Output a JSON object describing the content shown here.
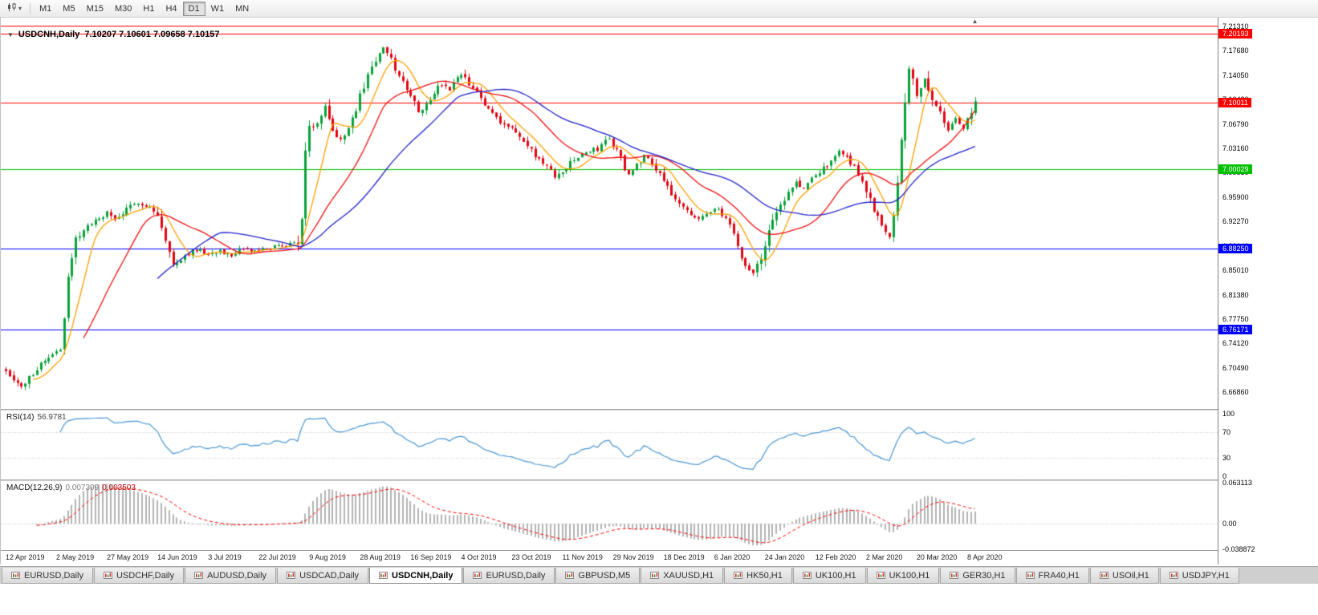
{
  "icons": {
    "collapse": "▼",
    "shift_marker": "▲",
    "selector_caret": "▾"
  },
  "toolbar": {
    "timeframes": [
      "M1",
      "M5",
      "M15",
      "M30",
      "H1",
      "H4",
      "D1",
      "W1",
      "MN"
    ],
    "active_timeframe": "D1"
  },
  "chart": {
    "symbol_title": "USDCNH,Daily",
    "ohlc_text": "7.10207 7.10601 7.09658 7.10157",
    "price_ticks": [
      "7.21310",
      "7.17680",
      "7.14050",
      "7.10420",
      "7.06790",
      "7.03160",
      "6.99530",
      "6.95900",
      "6.92270",
      "6.88640",
      "6.85010",
      "6.81380",
      "6.77750",
      "6.74120",
      "6.70490",
      "6.66860"
    ],
    "hlines": [
      {
        "value": 7.20193,
        "label": "7.20193",
        "color": "#ff0000"
      },
      {
        "value": 7.10011,
        "label": "7.10011",
        "color": "#ff0000"
      },
      {
        "value": 7.00029,
        "label": "7.00029",
        "color": "#00c000"
      },
      {
        "value": 6.8825,
        "label": "6.88250",
        "color": "#0000ff"
      },
      {
        "value": 6.76171,
        "label": "6.76171",
        "color": "#0000ff"
      }
    ],
    "colors": {
      "up": "#0aa23a",
      "down": "#e30613",
      "ma_fast": "#ffa000",
      "ma_mid": "#ee1111",
      "ma_slow": "#2222cc",
      "rsi": "#4a96d2",
      "macd_hist": "#b4b4b4",
      "macd_signal": "#ff0000",
      "levels": "#c0c0c0",
      "frame_top": "#ff0000"
    }
  },
  "chart_data": {
    "type": "candlestick+indicators",
    "symbol": "USDCNH",
    "timeframe": "Daily",
    "last_close": 7.10157,
    "price_range_visible": [
      6.6686,
      7.2131
    ],
    "candle_count": 250,
    "candles_per_label": 13,
    "x_labels": [
      "12 Apr 2019",
      "2 May 2019",
      "27 May 2019",
      "14 Jun 2019",
      "3 Jul 2019",
      "22 Jul 2019",
      "9 Aug 2019",
      "28 Aug 2019",
      "16 Sep 2019",
      "4 Oct 2019",
      "23 Oct 2019",
      "11 Nov 2019",
      "29 Nov 2019",
      "18 Dec 2019",
      "6 Jan 2020",
      "24 Jan 2020",
      "12 Feb 2020",
      "2 Mar 2020",
      "20 Mar 2020",
      "8 Apr 2020"
    ],
    "close_anchors": [
      [
        0,
        6.702
      ],
      [
        2,
        6.69
      ],
      [
        4,
        6.676
      ],
      [
        6,
        6.69
      ],
      [
        9,
        6.712
      ],
      [
        12,
        6.726
      ],
      [
        14,
        6.737
      ],
      [
        15,
        6.775
      ],
      [
        16,
        6.836
      ],
      [
        18,
        6.895
      ],
      [
        20,
        6.912
      ],
      [
        23,
        6.923
      ],
      [
        26,
        6.936
      ],
      [
        28,
        6.925
      ],
      [
        31,
        6.94
      ],
      [
        34,
        6.952
      ],
      [
        37,
        6.944
      ],
      [
        39,
        6.932
      ],
      [
        41,
        6.892
      ],
      [
        43,
        6.858
      ],
      [
        45,
        6.868
      ],
      [
        47,
        6.876
      ],
      [
        50,
        6.883
      ],
      [
        52,
        6.873
      ],
      [
        55,
        6.88
      ],
      [
        58,
        6.869
      ],
      [
        61,
        6.882
      ],
      [
        64,
        6.878
      ],
      [
        67,
        6.883
      ],
      [
        70,
        6.886
      ],
      [
        73,
        6.889
      ],
      [
        75,
        6.893
      ],
      [
        76,
        6.93
      ],
      [
        77,
        7.025
      ],
      [
        78,
        7.058
      ],
      [
        80,
        7.072
      ],
      [
        82,
        7.098
      ],
      [
        84,
        7.056
      ],
      [
        86,
        7.046
      ],
      [
        88,
        7.064
      ],
      [
        90,
        7.088
      ],
      [
        91,
        7.108
      ],
      [
        93,
        7.142
      ],
      [
        95,
        7.163
      ],
      [
        97,
        7.18
      ],
      [
        99,
        7.162
      ],
      [
        101,
        7.138
      ],
      [
        103,
        7.122
      ],
      [
        104,
        7.112
      ],
      [
        106,
        7.088
      ],
      [
        108,
        7.096
      ],
      [
        110,
        7.116
      ],
      [
        112,
        7.126
      ],
      [
        114,
        7.118
      ],
      [
        116,
        7.134
      ],
      [
        117,
        7.141
      ],
      [
        119,
        7.126
      ],
      [
        121,
        7.114
      ],
      [
        123,
        7.096
      ],
      [
        125,
        7.086
      ],
      [
        127,
        7.072
      ],
      [
        130,
        7.061
      ],
      [
        133,
        7.041
      ],
      [
        136,
        7.021
      ],
      [
        139,
        7.004
      ],
      [
        141,
        6.988
      ],
      [
        143,
        6.999
      ],
      [
        146,
        7.014
      ],
      [
        149,
        7.026
      ],
      [
        152,
        7.031
      ],
      [
        155,
        7.048
      ],
      [
        156,
        7.036
      ],
      [
        158,
        7.016
      ],
      [
        160,
        6.992
      ],
      [
        162,
        7.006
      ],
      [
        164,
        7.021
      ],
      [
        166,
        7.011
      ],
      [
        169,
        6.986
      ],
      [
        171,
        6.966
      ],
      [
        173,
        6.948
      ],
      [
        175,
        6.936
      ],
      [
        177,
        6.926
      ],
      [
        179,
        6.931
      ],
      [
        182,
        6.944
      ],
      [
        184,
        6.932
      ],
      [
        186,
        6.916
      ],
      [
        188,
        6.882
      ],
      [
        190,
        6.857
      ],
      [
        192,
        6.846
      ],
      [
        194,
        6.869
      ],
      [
        195,
        6.893
      ],
      [
        197,
        6.921
      ],
      [
        199,
        6.946
      ],
      [
        201,
        6.964
      ],
      [
        203,
        6.981
      ],
      [
        205,
        6.971
      ],
      [
        207,
        6.986
      ],
      [
        208,
        6.991
      ],
      [
        210,
        7.001
      ],
      [
        212,
        7.016
      ],
      [
        214,
        7.026
      ],
      [
        216,
        7.019
      ],
      [
        218,
        7.004
      ],
      [
        220,
        6.981
      ],
      [
        221,
        6.966
      ],
      [
        223,
        6.941
      ],
      [
        225,
        6.917
      ],
      [
        227,
        6.903
      ],
      [
        228,
        6.938
      ],
      [
        229,
        6.985
      ],
      [
        230,
        7.048
      ],
      [
        231,
        7.108
      ],
      [
        232,
        7.152
      ],
      [
        233,
        7.128
      ],
      [
        234,
        7.108
      ],
      [
        236,
        7.138
      ],
      [
        238,
        7.102
      ],
      [
        240,
        7.083
      ],
      [
        242,
        7.058
      ],
      [
        244,
        7.076
      ],
      [
        246,
        7.062
      ],
      [
        247,
        7.071
      ],
      [
        249,
        7.102
      ]
    ],
    "moving_averages": [
      {
        "name": "fast",
        "period": 8
      },
      {
        "name": "medium",
        "period": 21
      },
      {
        "name": "slow",
        "period": 40
      }
    ],
    "indicators": {
      "rsi": {
        "label": "RSI(14)",
        "value_text": "56.9781",
        "period": 14,
        "levels": [
          100,
          70,
          30,
          0
        ],
        "level_labels": [
          "100",
          "70",
          "30",
          "0"
        ]
      },
      "macd": {
        "label": "MACD(12,26,9)",
        "value_main": "0.007309",
        "value_signal": "0.003503",
        "params": [
          12,
          26,
          9
        ],
        "scale_labels": [
          "0.063113",
          "0.00",
          "-0.038872"
        ],
        "scale_values": [
          0.063113,
          0,
          -0.038872
        ]
      }
    }
  },
  "tabs": [
    {
      "label": "EURUSD,Daily",
      "active": false
    },
    {
      "label": "USDCHF,Daily",
      "active": false
    },
    {
      "label": "AUDUSD,Daily",
      "active": false
    },
    {
      "label": "USDCAD,Daily",
      "active": false
    },
    {
      "label": "USDCNH,Daily",
      "active": true
    },
    {
      "label": "EURUSD,Daily",
      "active": false
    },
    {
      "label": "GBPUSD,M5",
      "active": false
    },
    {
      "label": "XAUUSD,H1",
      "active": false
    },
    {
      "label": "HK50,H1",
      "active": false
    },
    {
      "label": "UK100,H1",
      "active": false
    },
    {
      "label": "UK100,H1",
      "active": false
    },
    {
      "label": "GER30,H1",
      "active": false
    },
    {
      "label": "FRA40,H1",
      "active": false
    },
    {
      "label": "USOil,H1",
      "active": false
    },
    {
      "label": "USDJPY,H1",
      "active": false
    }
  ]
}
